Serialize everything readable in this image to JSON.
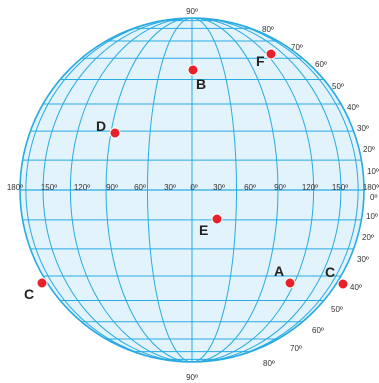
{
  "colors": {
    "grid_fill": "#e2f3fb",
    "grid_line": "#29abe2",
    "point": "#e8202a",
    "text": "#333333"
  },
  "labels": {
    "top_pole": "90º",
    "bottom_pole": "90º",
    "equator_row": [
      "180º",
      "150º",
      "120º",
      "90º",
      "60º",
      "30º",
      "0º",
      "30º",
      "60º",
      "90º",
      "120º",
      "150º",
      "180º"
    ],
    "right_north": [
      "80º",
      "70º",
      "60º",
      "50º",
      "40º",
      "30º",
      "20º",
      "10º",
      "0º"
    ],
    "right_south": [
      "10º",
      "20º",
      "30º",
      "40º",
      "50º",
      "60º",
      "70º",
      "80º"
    ]
  },
  "points": [
    {
      "label": "A"
    },
    {
      "label": "B"
    },
    {
      "label": "C"
    },
    {
      "label": "C"
    },
    {
      "label": "D"
    },
    {
      "label": "E"
    },
    {
      "label": "F"
    }
  ]
}
